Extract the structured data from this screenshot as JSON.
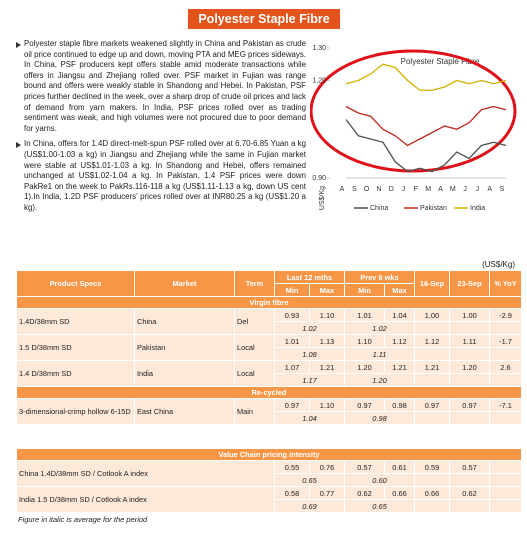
{
  "title": "Polyester Staple Fibre",
  "bullets": [
    "Polyester staple fibre markets weakened slightly in China and Pakistan as crude oil price continued to edge up and down, moving PTA and MEG prices sideways. In China, PSF producers kept offers stable amid moderate transactions while offers in Jiangsu and Zhejiang rolled over. PSF market in Fujian was range bound and offers were weakly stable in Shandong and Hebei. In Pakistan, PSF prices further declined in the week, over a sharp drop of crude oil prices and lack of demand from yarn makers. In India, PSF prices rolled over as trading sentiment was weak, and high volumes were not procured due to poor demand for yarns.",
    "In China, offers for 1.4D direct-melt-spun PSF rolled over at 6.70-6.85 Yuan a kg (US$1.00-1.03 a kg) in Jiangsu and Zhejiang while the same in Fujian market were stable at US$1.01-1.03 a kg. In Shandong and Hebei, offers remained unchanged at US$1.02-1.04 a kg. In Pakistan, 1.4 PSF prices were down PakRe1 on the week to PakRs.116-118 a kg (US$1.11-1.13 a kg, down US cent 1).In India, 1.2D PSF producers' prices rolled over at INR80.25 a kg (US$1.20 a kg)."
  ],
  "chart": {
    "type": "line",
    "title": "Polyester Staple Fibre",
    "y_label": "US$/Kg",
    "categories": [
      "A",
      "S",
      "O",
      "N",
      "D",
      "J",
      "F",
      "M",
      "A",
      "M",
      "J",
      "J",
      "A",
      "S"
    ],
    "ylim": [
      0.9,
      1.3
    ],
    "yticks": [
      {
        "value": 1.3,
        "label": "1.30"
      },
      {
        "value": 1.2,
        "label": "1.20"
      },
      {
        "value": 0.9,
        "label": "0.90"
      }
    ],
    "series": [
      {
        "name": "China",
        "color": "#505050",
        "values": [
          1.08,
          1.03,
          1.02,
          1.01,
          0.95,
          0.92,
          0.93,
          0.92,
          0.94,
          0.98,
          0.96,
          1.0,
          1.01,
          1.0
        ]
      },
      {
        "name": "Pakistan",
        "color": "#c0281e",
        "values": [
          1.12,
          1.1,
          1.09,
          1.05,
          1.03,
          1.0,
          1.02,
          1.04,
          1.06,
          1.05,
          1.07,
          1.11,
          1.12,
          1.11
        ]
      },
      {
        "name": "India",
        "color": "#d4b000",
        "values": [
          1.19,
          1.2,
          1.22,
          1.25,
          1.24,
          1.2,
          1.17,
          1.17,
          1.18,
          1.2,
          1.19,
          1.2,
          1.19,
          1.2
        ]
      }
    ]
  },
  "table": {
    "unit": "(US$/Kg)",
    "headers": {
      "spec": "Product Specs",
      "market": "Market",
      "term": "Term",
      "last12": "Last 12 mths",
      "prev6": "Prev 6 wks",
      "min": "Min",
      "max": "Max",
      "d1": "16-Sep",
      "d2": "23-Sep",
      "yoy": "% YoY"
    },
    "sections": [
      {
        "title": "Virgin fibre",
        "rows": [
          {
            "spec": "1.4D/38mm SD",
            "market": "China",
            "term": "Del",
            "l12": [
              "0.93",
              "1.10"
            ],
            "p6": [
              "1.01",
              "1.04"
            ],
            "d1": "1.00",
            "d2": "1.00",
            "yoy": "-2.9",
            "l12_avg": "1.02",
            "p6_avg": "1.02"
          },
          {
            "spec": "1.5 D/38mm SD",
            "market": "Pakistan",
            "term": "Local",
            "l12": [
              "1.01",
              "1.13"
            ],
            "p6": [
              "1.10",
              "1.12"
            ],
            "d1": "1.12",
            "d2": "1.11",
            "yoy": "-1.7",
            "l12_avg": "1.08",
            "p6_avg": "1.11"
          },
          {
            "spec": "1.4 D/38mm SD",
            "market": "India",
            "term": "Local",
            "l12": [
              "1.07",
              "1.21"
            ],
            "p6": [
              "1.20",
              "1.21"
            ],
            "d1": "1.21",
            "d2": "1.20",
            "yoy": "2.6",
            "l12_avg": "1.17",
            "p6_avg": "1.20"
          }
        ]
      },
      {
        "title": "Re-cycled",
        "rows": [
          {
            "spec": "3-dimensional-crimp hollow 6-15D",
            "market": "East China",
            "term": "Main",
            "l12": [
              "0.97",
              "1.10"
            ],
            "p6": [
              "0.97",
              "0.98"
            ],
            "d1": "0.97",
            "d2": "0.97",
            "yoy": "-7.1",
            "l12_avg": "1.04",
            "p6_avg": "0.98"
          }
        ]
      }
    ]
  },
  "value_chain": {
    "title": "Value Chain pricing intensity",
    "rows": [
      {
        "spec": "China 1.4D/38mm SD / Cotlook A index",
        "l12": [
          "0.55",
          "0.76"
        ],
        "p6": [
          "0.57",
          "0.61"
        ],
        "d1": "0.59",
        "d2": "0.57",
        "l12_avg": "0.65",
        "p6_avg": "0.60"
      },
      {
        "spec": "India 1.5 D/38mm SD / Cotlook A index",
        "l12": [
          "0.58",
          "0.77"
        ],
        "p6": [
          "0.62",
          "0.66"
        ],
        "d1": "0.66",
        "d2": "0.62",
        "l12_avg": "0.69",
        "p6_avg": "0.65"
      }
    ]
  },
  "footnote": "Figure in italic is average for the period"
}
